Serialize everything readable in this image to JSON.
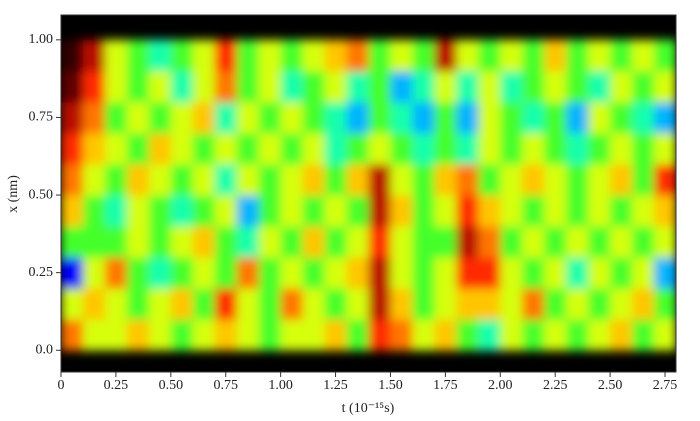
{
  "chart_data": {
    "type": "heatmap",
    "x_label": "t (10⁻¹⁵s)",
    "y_label": "x (nm)",
    "xlim": [
      0,
      2.8
    ],
    "ylim": [
      -0.07,
      1.08
    ],
    "xticks": [
      0,
      0.25,
      {
        "value": 0.5,
        "label": "0.50"
      },
      0.75,
      {
        "value": 1.0,
        "label": "1.00"
      },
      1.25,
      {
        "value": 1.5,
        "label": "1.50"
      },
      1.75,
      {
        "value": 2.0,
        "label": "2.00"
      },
      2.25,
      {
        "value": 2.5,
        "label": "2.50"
      },
      2.75
    ],
    "yticks": [
      {
        "value": 0,
        "label": "0.0"
      },
      0.25,
      {
        "value": 0.5,
        "label": "0.50"
      },
      0.75,
      {
        "value": 1.0,
        "label": "1.00"
      }
    ],
    "xbins": [
      0,
      0.1,
      0.2,
      0.3,
      0.4,
      0.5,
      0.6,
      0.7,
      0.8,
      0.9,
      1.0,
      1.1,
      1.2,
      1.3,
      1.4,
      1.5,
      1.6,
      1.7,
      1.8,
      1.9,
      2.0,
      2.1,
      2.2,
      2.3,
      2.4,
      2.5,
      2.6,
      2.7,
      2.8
    ],
    "ybins": [
      0,
      0.1,
      0.2,
      0.3,
      0.4,
      0.5,
      0.6,
      0.7,
      0.8,
      0.9,
      1.0
    ],
    "colormap": [
      "#000000",
      "#8b0000",
      "#ff2000",
      "#ff8c00",
      "#ffff00",
      "#30ff30",
      "#00ffff",
      "#0000ff"
    ],
    "values": [
      [
        0.4,
        0.6,
        0.6,
        0.5,
        0.6,
        0.7,
        0.6,
        0.5,
        0.6,
        0.7,
        0.6,
        0.6,
        0.5,
        0.7,
        0.3,
        0.4,
        0.6,
        0.5,
        0.7,
        0.8,
        0.6,
        0.7,
        0.6,
        0.7,
        0.6,
        0.5,
        0.7,
        0.6
      ],
      [
        0.6,
        0.5,
        0.6,
        0.7,
        0.6,
        0.5,
        0.7,
        0.3,
        0.6,
        0.7,
        0.4,
        0.6,
        0.7,
        0.6,
        0.2,
        0.5,
        0.7,
        0.6,
        0.5,
        0.5,
        0.6,
        0.4,
        0.7,
        0.6,
        0.7,
        0.6,
        0.5,
        0.7
      ],
      [
        1.0,
        0.6,
        0.4,
        0.7,
        0.8,
        0.7,
        0.6,
        0.7,
        0.4,
        0.7,
        0.6,
        0.7,
        0.6,
        0.5,
        0.2,
        0.6,
        0.7,
        0.6,
        0.3,
        0.3,
        0.6,
        0.7,
        0.6,
        0.8,
        0.6,
        0.7,
        0.6,
        0.9
      ],
      [
        0.7,
        0.7,
        0.7,
        0.6,
        0.7,
        0.6,
        0.5,
        0.7,
        0.8,
        0.6,
        0.7,
        0.5,
        0.7,
        0.6,
        0.3,
        0.6,
        0.7,
        0.7,
        0.2,
        0.4,
        0.7,
        0.6,
        0.7,
        0.6,
        0.7,
        0.6,
        0.7,
        0.6
      ],
      [
        0.5,
        0.7,
        0.8,
        0.6,
        0.7,
        0.8,
        0.7,
        0.6,
        0.9,
        0.7,
        0.6,
        0.7,
        0.6,
        0.7,
        0.2,
        0.5,
        0.7,
        0.6,
        0.3,
        0.5,
        0.6,
        0.7,
        0.6,
        0.7,
        0.6,
        0.7,
        0.6,
        0.5
      ],
      [
        0.4,
        0.6,
        0.7,
        0.5,
        0.6,
        0.7,
        0.6,
        0.8,
        0.6,
        0.7,
        0.6,
        0.5,
        0.7,
        0.5,
        0.2,
        0.6,
        0.7,
        0.5,
        0.4,
        0.7,
        0.6,
        0.5,
        0.6,
        0.7,
        0.6,
        0.5,
        0.7,
        0.3
      ],
      [
        0.3,
        0.5,
        0.6,
        0.7,
        0.5,
        0.6,
        0.7,
        0.6,
        0.7,
        0.6,
        0.7,
        0.6,
        0.8,
        0.7,
        0.6,
        0.7,
        0.8,
        0.7,
        0.8,
        0.6,
        0.7,
        0.6,
        0.7,
        0.8,
        0.7,
        0.6,
        0.7,
        0.6
      ],
      [
        0.2,
        0.4,
        0.7,
        0.6,
        0.7,
        0.6,
        0.5,
        0.8,
        0.6,
        0.7,
        0.6,
        0.7,
        0.8,
        0.9,
        0.7,
        0.8,
        0.9,
        0.7,
        0.9,
        0.6,
        0.7,
        0.8,
        0.7,
        0.9,
        0.6,
        0.7,
        0.8,
        0.9
      ],
      [
        0.1,
        0.3,
        0.6,
        0.7,
        0.6,
        0.8,
        0.6,
        0.4,
        0.7,
        0.6,
        0.8,
        0.7,
        0.6,
        0.8,
        0.7,
        0.9,
        0.8,
        0.6,
        0.8,
        0.6,
        0.8,
        0.7,
        0.6,
        0.7,
        0.8,
        0.6,
        0.7,
        0.6
      ],
      [
        0.05,
        0.2,
        0.6,
        0.7,
        0.8,
        0.7,
        0.6,
        0.3,
        0.7,
        0.6,
        0.7,
        0.6,
        0.5,
        0.4,
        0.7,
        0.6,
        0.7,
        0.2,
        0.6,
        0.7,
        0.6,
        0.7,
        0.5,
        0.7,
        0.6,
        0.7,
        0.6,
        0.7
      ]
    ]
  }
}
